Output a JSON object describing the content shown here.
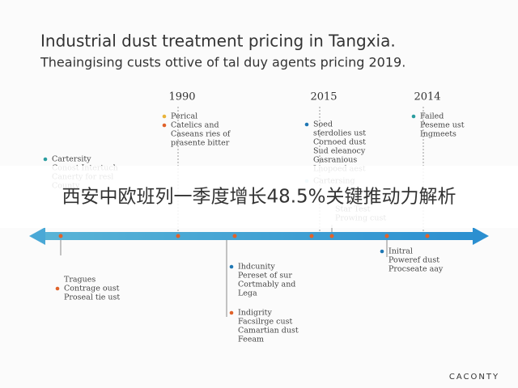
{
  "header": {
    "title": "Industrial dust treatment pricing in Tangxia.",
    "subtitle": "Theaingising custs ottive of tal duy agents pricing 2019."
  },
  "years": [
    "1990",
    "2015",
    "2014"
  ],
  "events": [
    {
      "lines": [
        "Cartersity",
        "Conost Intertuch",
        "Canerty for resl",
        "County"
      ]
    },
    {
      "lines": [
        "Perical",
        "Catelics and",
        "Caseans ries of",
        "prasente bitter"
      ]
    },
    {
      "lines": [
        "Soed",
        "sterdolies ust",
        "Cornoed dust",
        "Sud eleanocy",
        "Gasranious",
        "Lnopoed aest"
      ]
    },
    {
      "lines": [
        "Cartersing"
      ]
    },
    {
      "lines": [
        "Star Test",
        "Prowing cust"
      ]
    },
    {
      "lines": [
        "Failed",
        "Peseme ust",
        "Ingmeets"
      ]
    },
    {
      "lines": [
        "Tragues",
        "Contrage oust",
        "Proseal tie ust"
      ]
    },
    {
      "lines": [
        "Ihdcunity",
        "Pereset of sur",
        "Cortmably and",
        "Lega"
      ]
    },
    {
      "lines": [
        "Indigrity",
        "Facsilrge cust",
        "Camartian dust",
        "Feeam"
      ]
    },
    {
      "lines": [
        "Initral",
        "Poweref dust",
        "Procseate aay"
      ]
    }
  ],
  "banner": "西安中欧班列一季度增长48.5%关键推动力解析",
  "footer": "CACONTY"
}
